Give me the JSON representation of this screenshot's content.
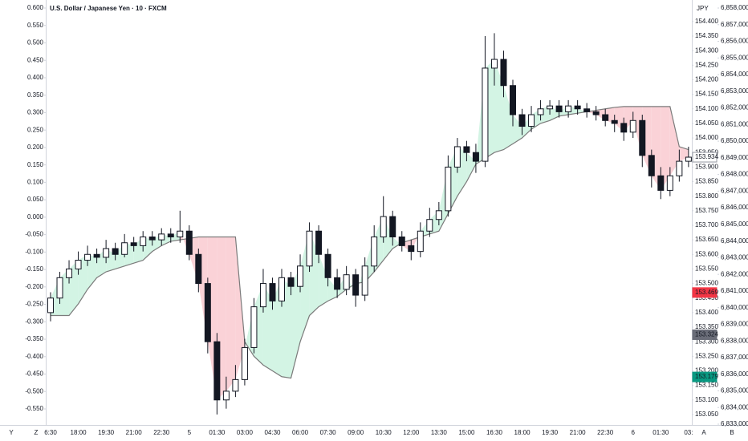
{
  "chart_data": {
    "type": "candlestick",
    "title": "U.S. Dollar / Japanese Yen · 10 · FXCM",
    "currency": "JPY",
    "categories": [
      "6:30",
      null,
      null,
      "18:00",
      null,
      null,
      "19:30",
      null,
      null,
      "21:00",
      null,
      null,
      "22:30",
      null,
      null,
      "5",
      null,
      null,
      "01:30",
      null,
      null,
      "03:00",
      null,
      null,
      "04:30",
      null,
      null,
      "06:00",
      null,
      null,
      "07:30",
      null,
      null,
      "09:00",
      null,
      null,
      "10:30",
      null,
      null,
      "12:00",
      null,
      null,
      "13:30",
      null,
      null,
      "15:00",
      null,
      null,
      "16:30",
      null,
      null,
      "18:00",
      null,
      null,
      "19:30",
      null,
      null,
      "21:00",
      null,
      null,
      "22:30",
      null,
      null,
      "6",
      null,
      null,
      "01:30",
      null,
      null,
      "03:"
    ],
    "series": [
      {
        "up_color": "#ffffff",
        "down_color": "#131722",
        "wick_color": "#131722",
        "open": [
          153.4,
          153.45,
          153.52,
          153.55,
          153.58,
          153.6,
          153.59,
          153.62,
          153.6,
          153.64,
          153.63,
          153.66,
          153.65,
          153.67,
          153.66,
          153.68,
          153.6,
          153.5,
          153.3,
          153.1,
          153.13,
          153.17,
          153.28,
          153.42,
          153.5,
          153.44,
          153.52,
          153.49,
          153.56,
          153.68,
          153.6,
          153.52,
          153.48,
          153.53,
          153.46,
          153.56,
          153.66,
          153.73,
          153.66,
          153.63,
          153.61,
          153.68,
          153.72,
          153.75,
          153.9,
          153.97,
          153.95,
          153.92,
          154.24,
          154.27,
          154.18,
          154.08,
          154.04,
          154.08,
          154.1,
          154.11,
          154.09,
          154.11,
          154.1,
          154.09,
          154.08,
          154.06,
          154.05,
          154.02,
          154.06,
          153.94,
          153.87,
          153.82,
          153.87,
          153.92
        ],
        "high": [
          153.47,
          153.54,
          153.58,
          153.61,
          153.63,
          153.62,
          153.65,
          153.64,
          153.67,
          153.66,
          153.68,
          153.68,
          153.69,
          153.69,
          153.75,
          153.7,
          153.62,
          153.52,
          153.33,
          153.18,
          153.22,
          153.31,
          153.45,
          153.55,
          153.52,
          153.55,
          153.54,
          153.6,
          153.71,
          153.7,
          153.62,
          153.55,
          153.56,
          153.55,
          153.59,
          153.7,
          153.8,
          153.75,
          153.68,
          153.65,
          153.71,
          153.76,
          153.78,
          153.94,
          154.0,
          153.99,
          153.98,
          154.35,
          154.36,
          154.3,
          154.2,
          154.1,
          154.11,
          154.13,
          154.13,
          154.13,
          154.13,
          154.13,
          154.12,
          154.11,
          154.1,
          154.08,
          154.07,
          154.09,
          154.08,
          153.96,
          153.9,
          153.9,
          153.96,
          153.97
        ],
        "low": [
          153.37,
          153.43,
          153.5,
          153.53,
          153.56,
          153.57,
          153.57,
          153.58,
          153.59,
          153.61,
          153.61,
          153.63,
          153.63,
          153.64,
          153.64,
          153.58,
          153.47,
          153.26,
          153.05,
          153.07,
          153.11,
          153.15,
          153.26,
          153.4,
          153.41,
          153.42,
          153.46,
          153.47,
          153.54,
          153.57,
          153.49,
          153.45,
          153.46,
          153.42,
          153.44,
          153.54,
          153.64,
          153.63,
          153.61,
          153.58,
          153.59,
          153.66,
          153.7,
          153.73,
          153.88,
          153.92,
          153.88,
          153.9,
          154.18,
          154.14,
          154.04,
          154.01,
          154.02,
          154.06,
          154.08,
          154.07,
          154.07,
          154.08,
          154.07,
          154.06,
          154.04,
          154.02,
          153.99,
          154.0,
          153.9,
          153.83,
          153.79,
          153.8,
          153.85,
          153.9
        ],
        "close": [
          153.45,
          153.52,
          153.55,
          153.58,
          153.6,
          153.59,
          153.62,
          153.6,
          153.64,
          153.63,
          153.66,
          153.65,
          153.67,
          153.66,
          153.68,
          153.6,
          153.5,
          153.3,
          153.1,
          153.13,
          153.17,
          153.28,
          153.42,
          153.5,
          153.44,
          153.52,
          153.49,
          153.56,
          153.68,
          153.6,
          153.52,
          153.48,
          153.53,
          153.46,
          153.56,
          153.66,
          153.73,
          153.66,
          153.63,
          153.61,
          153.68,
          153.72,
          153.75,
          153.9,
          153.97,
          153.95,
          153.92,
          154.24,
          154.27,
          154.18,
          154.08,
          154.04,
          154.08,
          154.1,
          154.11,
          154.09,
          154.11,
          154.1,
          154.09,
          154.08,
          154.06,
          154.05,
          154.02,
          154.06,
          153.94,
          153.87,
          153.82,
          153.87,
          153.92,
          153.934
        ]
      },
      {
        "type": "line",
        "color": "#7b7b7b",
        "fill_up": "#d3f4e4",
        "fill_down": "#fad2d7",
        "values": [
          153.39,
          153.39,
          153.39,
          153.43,
          153.48,
          153.52,
          153.54,
          153.55,
          153.56,
          153.57,
          153.58,
          153.61,
          153.63,
          153.645,
          153.65,
          153.655,
          153.66,
          153.66,
          153.66,
          153.66,
          153.66,
          153.3,
          153.25,
          153.22,
          153.2,
          153.18,
          153.175,
          153.3,
          153.39,
          153.42,
          153.44,
          153.455,
          153.48,
          153.5,
          153.505,
          153.54,
          153.58,
          153.62,
          153.64,
          153.65,
          153.66,
          153.67,
          153.68,
          153.74,
          153.8,
          153.85,
          153.91,
          153.93,
          153.95,
          153.96,
          153.98,
          154.0,
          154.03,
          154.05,
          154.06,
          154.075,
          154.08,
          154.085,
          154.09,
          154.095,
          154.1,
          154.105,
          154.108,
          154.108,
          154.108,
          154.108,
          154.108,
          154.108,
          153.97,
          153.96
        ]
      }
    ],
    "ylim": [
      153.014,
      154.474
    ],
    "yticks": [
      {
        "value": 154.4,
        "label": "154.400"
      },
      {
        "value": 154.35,
        "label": "154.350"
      },
      {
        "value": 154.3,
        "label": "154.300"
      },
      {
        "value": 154.25,
        "label": "154.250"
      },
      {
        "value": 154.2,
        "label": "154.200"
      },
      {
        "value": 154.15,
        "label": "154.150"
      },
      {
        "value": 154.1,
        "label": "154.100"
      },
      {
        "value": 154.05,
        "label": "154.050"
      },
      {
        "value": 154,
        "label": "154.000"
      },
      {
        "value": 153.95,
        "label": "153.950"
      },
      {
        "value": 153.9,
        "label": "153.900"
      },
      {
        "value": 153.85,
        "label": "153.850"
      },
      {
        "value": 153.8,
        "label": "153.800"
      },
      {
        "value": 153.75,
        "label": "153.750"
      },
      {
        "value": 153.7,
        "label": "153.700"
      },
      {
        "value": 153.65,
        "label": "153.650"
      },
      {
        "value": 153.6,
        "label": "153.600"
      },
      {
        "value": 153.55,
        "label": "153.550"
      },
      {
        "value": 153.5,
        "label": "153.500"
      },
      {
        "value": 153.45,
        "label": "153.450"
      },
      {
        "value": 153.4,
        "label": "153.400"
      },
      {
        "value": 153.35,
        "label": "153.350"
      },
      {
        "value": 153.3,
        "label": "153.300"
      },
      {
        "value": 153.25,
        "label": "153.250"
      },
      {
        "value": 153.2,
        "label": "153.200"
      },
      {
        "value": 153.15,
        "label": "153.150"
      },
      {
        "value": 153.1,
        "label": "153.100"
      },
      {
        "value": 153.05,
        "label": "153.050"
      }
    ],
    "y2lim": [
      -0.596,
      0.623
    ],
    "y2ticks": [
      {
        "value": 0.6,
        "label": "0.600"
      },
      {
        "value": 0.55,
        "label": "0.550"
      },
      {
        "value": 0.5,
        "label": "0.500"
      },
      {
        "value": 0.45,
        "label": "0.450"
      },
      {
        "value": 0.4,
        "label": "0.400"
      },
      {
        "value": 0.35,
        "label": "0.350"
      },
      {
        "value": 0.3,
        "label": "0.300"
      },
      {
        "value": 0.25,
        "label": "0.250"
      },
      {
        "value": 0.2,
        "label": "0.200"
      },
      {
        "value": 0.15,
        "label": "0.150"
      },
      {
        "value": 0.1,
        "label": "0.100"
      },
      {
        "value": 0.05,
        "label": "0.050"
      },
      {
        "value": 0,
        "label": "0.000"
      },
      {
        "value": -0.05,
        "label": "-0.050"
      },
      {
        "value": -0.1,
        "label": "-0.100"
      },
      {
        "value": -0.15,
        "label": "-0.150"
      },
      {
        "value": -0.2,
        "label": "-0.200"
      },
      {
        "value": -0.25,
        "label": "-0.250"
      },
      {
        "value": -0.3,
        "label": "-0.300"
      },
      {
        "value": -0.35,
        "label": "-0.350"
      },
      {
        "value": -0.4,
        "label": "-0.400"
      },
      {
        "value": -0.45,
        "label": "-0.450"
      },
      {
        "value": -0.5,
        "label": "-0.500"
      },
      {
        "value": -0.55,
        "label": "-0.550"
      }
    ],
    "y3lim": [
      6832952,
      6858482
    ],
    "y3ticks": [
      {
        "value": 6858000,
        "label": "6,858,000"
      },
      {
        "value": 6857000,
        "label": "6,857,000"
      },
      {
        "value": 6856000,
        "label": "6,856,000"
      },
      {
        "value": 6855000,
        "label": "6,855,000"
      },
      {
        "value": 6854000,
        "label": "6,854,000"
      },
      {
        "value": 6853000,
        "label": "6,853,000"
      },
      {
        "value": 6852000,
        "label": "6,852,000"
      },
      {
        "value": 6851000,
        "label": "6,851,000"
      },
      {
        "value": 6850000,
        "label": "6,850,000"
      },
      {
        "value": 6849000,
        "label": "6,849,000"
      },
      {
        "value": 6848000,
        "label": "6,848,000"
      },
      {
        "value": 6847000,
        "label": "6,847,000"
      },
      {
        "value": 6846000,
        "label": "6,846,000"
      },
      {
        "value": 6845000,
        "label": "6,845,000"
      },
      {
        "value": 6844000,
        "label": "6,844,000"
      },
      {
        "value": 6843000,
        "label": "6,843,000"
      },
      {
        "value": 6842000,
        "label": "6,842,000"
      },
      {
        "value": 6841000,
        "label": "6,841,000"
      },
      {
        "value": 6840000,
        "label": "6,840,000"
      },
      {
        "value": 6839000,
        "label": "6,839,000"
      },
      {
        "value": 6838000,
        "label": "6,838,000"
      },
      {
        "value": 6837000,
        "label": "6,837,000"
      },
      {
        "value": 6836000,
        "label": "6,836,000"
      },
      {
        "value": 6835000,
        "label": "6,835,000"
      },
      {
        "value": 6834000,
        "label": "6,834,000"
      },
      {
        "value": 6833000,
        "label": "6,833,000"
      }
    ],
    "price_tags": [
      {
        "value": 153.934,
        "label": "153.934",
        "color": "#ffffff",
        "text_color": "#787b86",
        "border": "#9598a1"
      },
      {
        "value": 153.469,
        "label": "153.469",
        "color": "#f23645",
        "text_color": "#ffffff",
        "border": "#f23645"
      },
      {
        "value": 153.324,
        "label": "153.324",
        "color": "#6a6d78",
        "text_color": "#ffffff",
        "border": "#6a6d78"
      },
      {
        "value": 153.179,
        "label": "153.179",
        "color": "#089981",
        "text_color": "#ffffff",
        "border": "#089981"
      }
    ],
    "toolbar_left": [
      "Y",
      "Z"
    ],
    "toolbar_right": [
      "A",
      "B"
    ]
  }
}
